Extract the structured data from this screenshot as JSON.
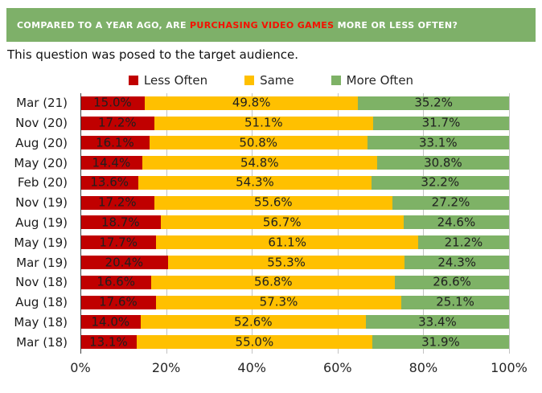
{
  "banner": {
    "text_prefix": "COMPARED TO A YEAR AGO, ARE ",
    "text_highlight": "PURCHASING VIDEO GAMES",
    "text_suffix": " MORE OR LESS OFTEN?",
    "bg_color": "#7EB069",
    "prefix_color": "#FFFFFF",
    "highlight_color": "#F41100"
  },
  "subtitle": "This question was posed to the target audience.",
  "chart_data": {
    "type": "bar",
    "orientation": "horizontal",
    "stacked": true,
    "unit": "%",
    "categories": [
      "Mar (21)",
      "Nov (20)",
      "Aug (20)",
      "May (20)",
      "Feb (20)",
      "Nov (19)",
      "Aug (19)",
      "May (19)",
      "Mar (19)",
      "Nov (18)",
      "Aug (18)",
      "May (18)",
      "Mar (18)"
    ],
    "series": [
      {
        "name": "Less Often",
        "color": "#C00000",
        "values": [
          15.0,
          17.2,
          16.1,
          14.4,
          13.6,
          17.2,
          18.7,
          17.7,
          20.4,
          16.6,
          17.6,
          14.0,
          13.1
        ]
      },
      {
        "name": "Same",
        "color": "#FFC000",
        "values": [
          49.8,
          51.1,
          50.8,
          54.8,
          54.3,
          55.6,
          56.7,
          61.1,
          55.3,
          56.8,
          57.3,
          52.6,
          55.0
        ]
      },
      {
        "name": "More Often",
        "color": "#7EB266",
        "values": [
          35.2,
          31.7,
          33.1,
          30.8,
          32.2,
          27.2,
          24.6,
          21.2,
          24.3,
          26.6,
          25.1,
          33.4,
          31.9
        ]
      }
    ],
    "xlim": [
      0,
      100
    ],
    "x_ticks": [
      "0%",
      "20%",
      "40%",
      "60%",
      "80%",
      "100%"
    ],
    "grid": true,
    "legend_position": "top",
    "value_labels": "inside, one decimal + %",
    "gridline_color": "#C3C3C3",
    "axis_line_color": "#404040"
  }
}
